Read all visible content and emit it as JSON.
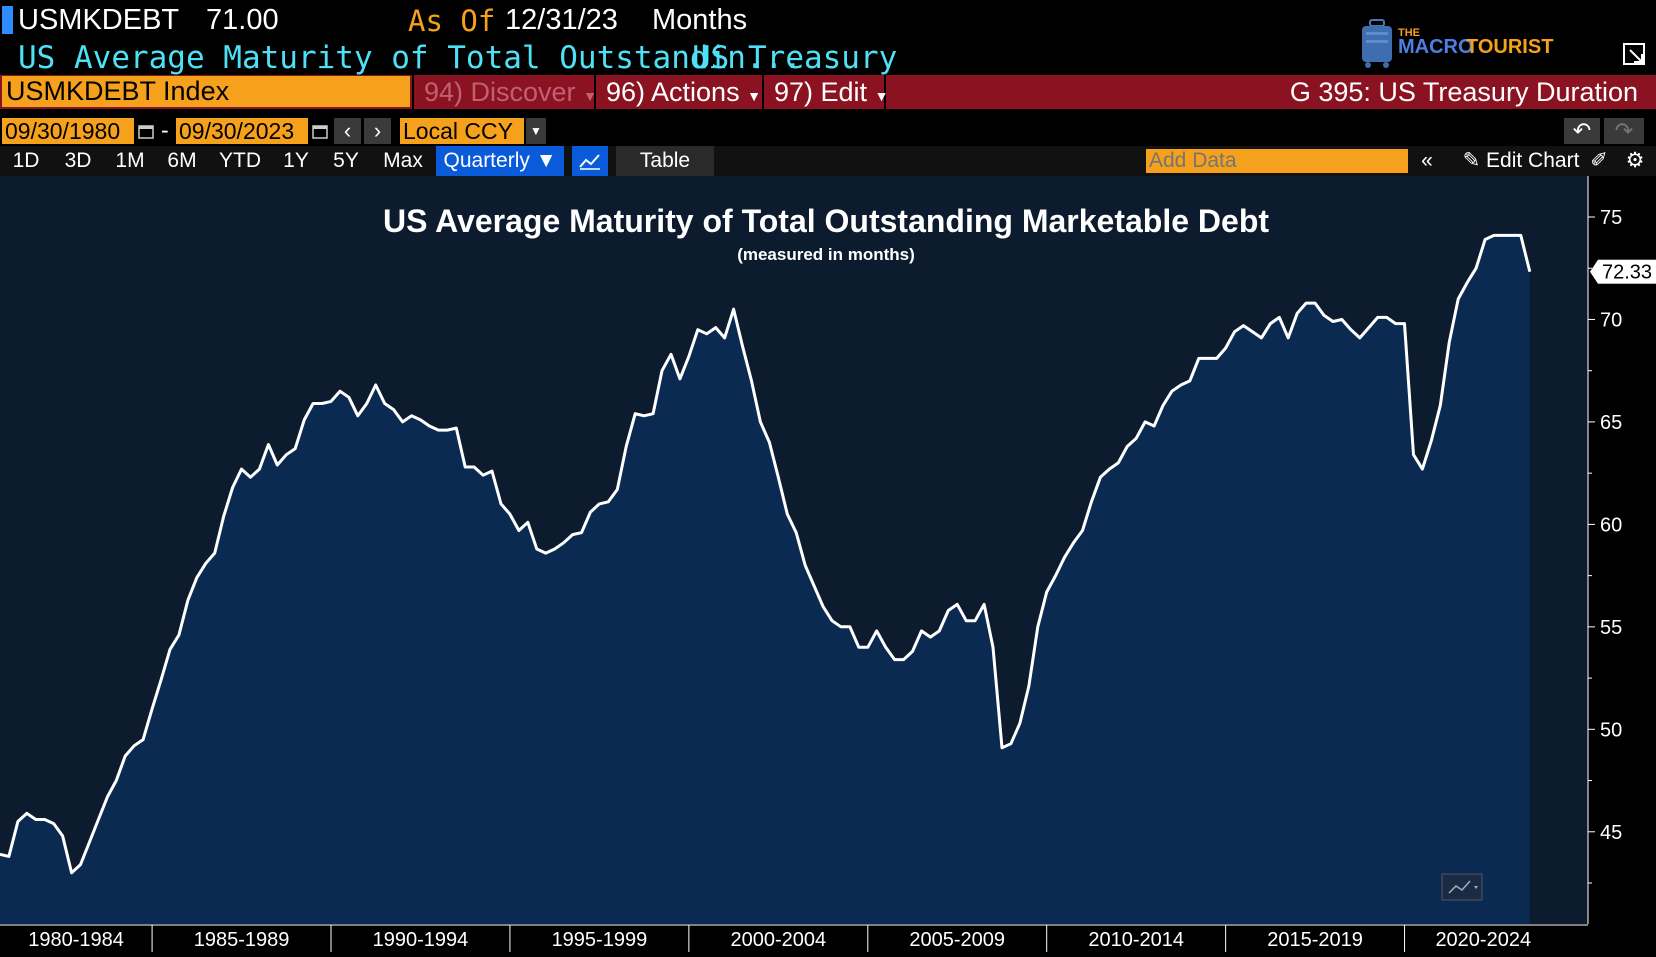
{
  "header": {
    "ticker": "USMKDEBT",
    "last_value": "71.00",
    "as_of_label": "As Of",
    "as_of_date": "12/31/23",
    "units": "Months",
    "description": "US Average Maturity of Total Outstandin...",
    "source": "US Treasury"
  },
  "logo": {
    "small": "THE",
    "macro": "MACRO",
    "tourist": "TOURIST"
  },
  "menubar": {
    "security": "USMKDEBT Index",
    "discover": "94) Discover",
    "actions": "96) Actions",
    "edit": "97) Edit",
    "graph_title": "G 395: US Treasury Duration"
  },
  "toolbar": {
    "start_date": "09/30/1980",
    "separator": "-",
    "end_date": "09/30/2023",
    "currency": "Local CCY",
    "timeframes": [
      "1D",
      "3D",
      "1M",
      "6M",
      "YTD",
      "1Y",
      "5Y",
      "Max"
    ],
    "frequency": "Quarterly ▼",
    "table_label": "Table",
    "add_data_placeholder": "Add Data",
    "edit_chart": "Edit Chart"
  },
  "colors": {
    "area_fill": "#0b2a52",
    "line": "#ffffff",
    "accent_orange": "#f5a11b",
    "menubar_red": "#8a1221",
    "header_cyan": "#4ee1f5"
  },
  "chart_data": {
    "type": "area",
    "title": "US Average Maturity of Total Outstanding Marketable Debt",
    "subtitle": "(measured in months)",
    "x_tick_labels": [
      "1980-1984",
      "1985-1989",
      "1990-1994",
      "1995-1999",
      "2000-2004",
      "2005-2009",
      "2010-2014",
      "2015-2019",
      "2020-2024"
    ],
    "y_ticks": [
      45,
      50,
      55,
      60,
      65,
      70,
      75
    ],
    "ylim": [
      40.5,
      77
    ],
    "last_value_label": "72.33",
    "x_start": 1980.75,
    "x_step": 0.25,
    "values": [
      43.9,
      43.8,
      45.5,
      45.9,
      45.6,
      45.6,
      45.4,
      44.8,
      43.0,
      43.4,
      44.5,
      45.6,
      46.7,
      47.5,
      48.7,
      49.2,
      49.5,
      51.0,
      52.4,
      53.9,
      54.6,
      56.3,
      57.4,
      58.1,
      58.6,
      60.4,
      61.8,
      62.7,
      62.3,
      62.7,
      63.9,
      62.9,
      63.4,
      63.7,
      65.1,
      65.9,
      65.9,
      66.0,
      66.5,
      66.2,
      65.3,
      65.9,
      66.8,
      65.9,
      65.6,
      65.0,
      65.3,
      65.1,
      64.8,
      64.6,
      64.6,
      64.7,
      62.8,
      62.8,
      62.4,
      62.6,
      61.0,
      60.5,
      59.7,
      60.1,
      58.8,
      58.6,
      58.8,
      59.1,
      59.5,
      59.6,
      60.6,
      61.0,
      61.1,
      61.7,
      63.8,
      65.4,
      65.3,
      65.4,
      67.5,
      68.3,
      67.1,
      68.2,
      69.5,
      69.3,
      69.6,
      69.1,
      70.5,
      68.7,
      67.0,
      65.0,
      64.0,
      62.3,
      60.5,
      59.6,
      58.0,
      57.0,
      56.0,
      55.3,
      55.0,
      55.0,
      54.0,
      54.0,
      54.8,
      54.0,
      53.4,
      53.4,
      53.8,
      54.8,
      54.5,
      54.8,
      55.8,
      56.1,
      55.3,
      55.3,
      56.1,
      54.0,
      49.1,
      49.3,
      50.3,
      52.1,
      55.0,
      56.7,
      57.5,
      58.4,
      59.1,
      59.7,
      61.1,
      62.3,
      62.7,
      63.0,
      63.8,
      64.2,
      65.0,
      64.8,
      65.8,
      66.5,
      66.8,
      67.0,
      68.1,
      68.1,
      68.1,
      68.6,
      69.4,
      69.7,
      69.4,
      69.1,
      69.8,
      70.1,
      69.1,
      70.3,
      70.8,
      70.8,
      70.2,
      69.9,
      70.0,
      69.5,
      69.1,
      69.6,
      70.1,
      70.1,
      69.8,
      69.8,
      63.4,
      62.7,
      64.1,
      65.8,
      68.9,
      71.0,
      71.8,
      72.5,
      73.9,
      74.1,
      74.1,
      74.1,
      74.1,
      72.33
    ],
    "grid": false,
    "legend": "none"
  }
}
